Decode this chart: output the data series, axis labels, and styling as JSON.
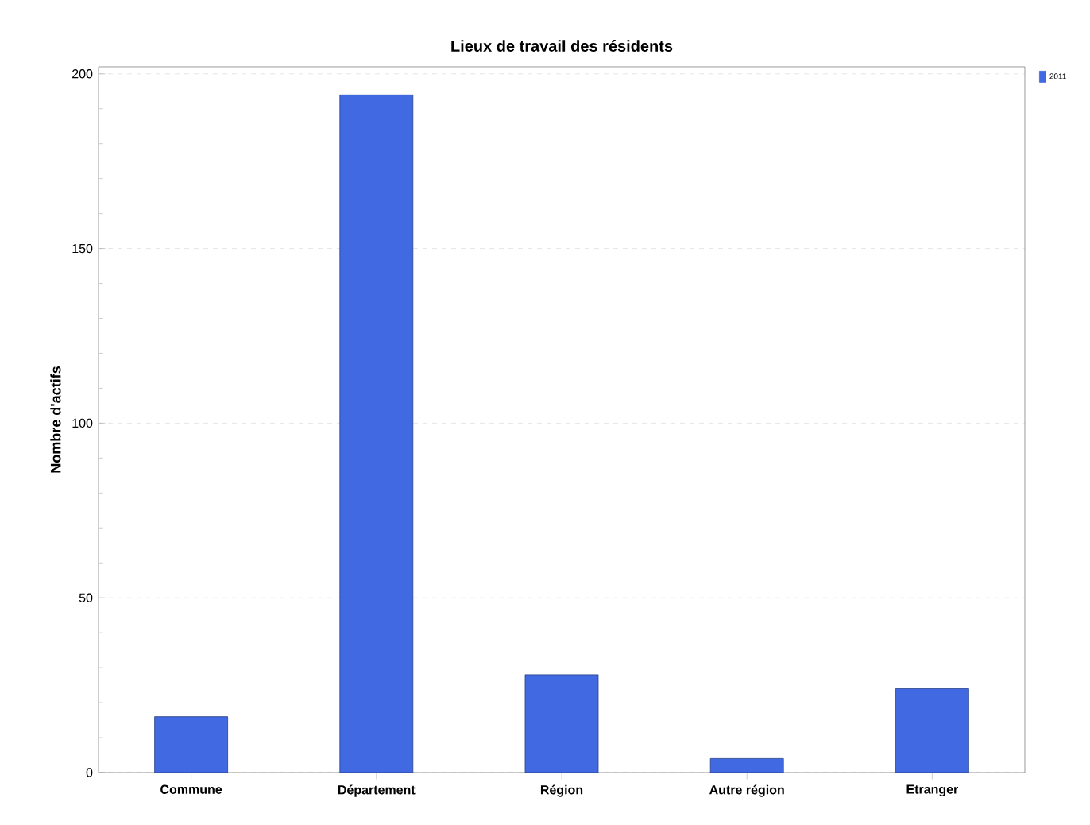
{
  "chart_data": {
    "type": "bar",
    "title": "Lieux de travail des résidents",
    "ylabel": "Nombre d'actifs",
    "categories": [
      "Commune",
      "Département",
      "Région",
      "Autre région",
      "Etranger"
    ],
    "series": [
      {
        "name": "2011",
        "color": "#4169e1",
        "values": [
          16,
          194,
          28,
          4,
          24
        ]
      }
    ],
    "ylim": [
      0,
      202
    ],
    "yticks": [
      0,
      50,
      100,
      150,
      200
    ],
    "grid": "y",
    "legend": "top right"
  }
}
